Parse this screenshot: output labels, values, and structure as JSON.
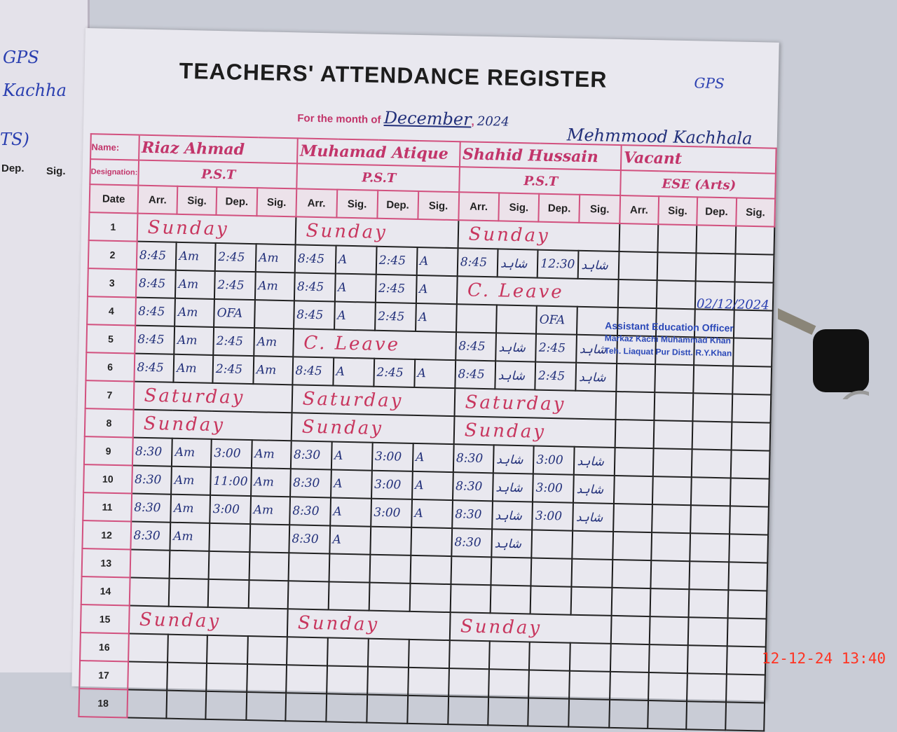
{
  "left_page": {
    "texts": [
      "GPS",
      "Kachha",
      "TS)"
    ],
    "headers": [
      "Dep.",
      "Sig."
    ]
  },
  "register": {
    "title": "TEACHERS' ATTENDANCE REGISTER",
    "school_tag": "GPS",
    "month_label": "For the month of",
    "month": "December",
    "year": "2024",
    "school": "Mehmmood Kachhala",
    "name_label": "Name:",
    "designation_label": "Designation:",
    "date_header": "Date",
    "col_headers": [
      "Arr.",
      "Sig.",
      "Dep.",
      "Sig."
    ]
  },
  "teachers": [
    {
      "name": "Riaz Ahmad",
      "designation": "P.S.T"
    },
    {
      "name": "Muhamad Atique",
      "designation": "P.S.T"
    },
    {
      "name": "Shahid Hussain",
      "designation": "P.S.T"
    },
    {
      "name": "Vacant",
      "designation": "ESE (Arts)"
    }
  ],
  "rows": [
    {
      "date": "1",
      "cells": [
        "Sunday",
        "Sunday",
        "Sunday",
        null
      ]
    },
    {
      "date": "2",
      "cells": [
        [
          "8:45",
          "Am",
          "2:45",
          "Am"
        ],
        [
          "8:45",
          "A",
          "2:45",
          "A"
        ],
        [
          "8:45",
          "شاہد",
          "12:30",
          "شاہد"
        ],
        null
      ]
    },
    {
      "date": "3",
      "cells": [
        [
          "8:45",
          "Am",
          "2:45",
          "Am"
        ],
        [
          "8:45",
          "A",
          "2:45",
          "A"
        ],
        "C. Leave",
        null
      ]
    },
    {
      "date": "4",
      "cells": [
        [
          "8:45",
          "Am",
          "OFA",
          ""
        ],
        [
          "8:45",
          "A",
          "2:45",
          "A"
        ],
        [
          "",
          "",
          "OFA",
          ""
        ],
        null
      ]
    },
    {
      "date": "5",
      "cells": [
        [
          "8:45",
          "Am",
          "2:45",
          "Am"
        ],
        "C. Leave",
        [
          "8:45",
          "شاہد",
          "2:45",
          "شاہد"
        ],
        null
      ]
    },
    {
      "date": "6",
      "cells": [
        [
          "8:45",
          "Am",
          "2:45",
          "Am"
        ],
        [
          "8:45",
          "A",
          "2:45",
          "A"
        ],
        [
          "8:45",
          "شاہد",
          "2:45",
          "شاہد"
        ],
        null
      ]
    },
    {
      "date": "7",
      "cells": [
        "Saturday",
        "Saturday",
        "Saturday",
        null
      ]
    },
    {
      "date": "8",
      "cells": [
        "Sunday",
        "Sunday",
        "Sunday",
        null
      ]
    },
    {
      "date": "9",
      "cells": [
        [
          "8:30",
          "Am",
          "3:00",
          "Am"
        ],
        [
          "8:30",
          "A",
          "3:00",
          "A"
        ],
        [
          "8:30",
          "شاہد",
          "3:00",
          "شاہد"
        ],
        null
      ]
    },
    {
      "date": "10",
      "cells": [
        [
          "8:30",
          "Am",
          "11:00",
          "Am"
        ],
        [
          "8:30",
          "A",
          "3:00",
          "A"
        ],
        [
          "8:30",
          "شاہد",
          "3:00",
          "شاہد"
        ],
        null
      ]
    },
    {
      "date": "11",
      "cells": [
        [
          "8:30",
          "Am",
          "3:00",
          "Am"
        ],
        [
          "8:30",
          "A",
          "3:00",
          "A"
        ],
        [
          "8:30",
          "شاہد",
          "3:00",
          "شاہد"
        ],
        null
      ]
    },
    {
      "date": "12",
      "cells": [
        [
          "8:30",
          "Am",
          "",
          ""
        ],
        [
          "8:30",
          "A",
          "",
          ""
        ],
        [
          "8:30",
          "شاہد",
          "",
          ""
        ],
        null
      ]
    },
    {
      "date": "13",
      "cells": [
        null,
        null,
        null,
        null
      ]
    },
    {
      "date": "14",
      "cells": [
        null,
        null,
        null,
        null
      ]
    },
    {
      "date": "15",
      "cells": [
        "Sunday",
        "Sunday",
        "Sunday",
        null
      ]
    },
    {
      "date": "16",
      "cells": [
        null,
        null,
        null,
        null
      ]
    },
    {
      "date": "17",
      "cells": [
        null,
        null,
        null,
        null
      ]
    },
    {
      "date": "18",
      "cells": [
        null,
        null,
        null,
        null
      ]
    }
  ],
  "stamp": {
    "lines": [
      "Assistant Education Officer",
      "Markaz Kachi Muhammad Khan",
      "Teh. Liaquat Pur Distt. R.Y.Khan"
    ],
    "date": "02/12/2024"
  },
  "photo_timestamp": "12-12-24  13:40"
}
